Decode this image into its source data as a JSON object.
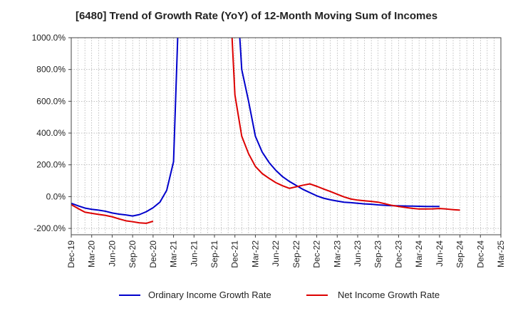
{
  "chart_data": {
    "type": "line",
    "title": "[6480]  Trend of Growth Rate (YoY) of 12-Month Moving Sum of Incomes",
    "xlabel": "",
    "ylabel": "",
    "ylim": [
      -240,
      1000
    ],
    "y_ticks": [
      -200,
      0,
      200,
      400,
      600,
      800,
      1000
    ],
    "y_tick_labels": [
      "-200.0%",
      "0.0%",
      "200.0%",
      "400.0%",
      "600.0%",
      "800.0%",
      "1000.0%"
    ],
    "x_tick_labels": [
      "Dec-19",
      "Mar-20",
      "Jun-20",
      "Sep-20",
      "Dec-20",
      "Mar-21",
      "Jun-21",
      "Sep-21",
      "Dec-21",
      "Mar-22",
      "Jun-22",
      "Sep-22",
      "Dec-22",
      "Mar-23",
      "Jun-23",
      "Sep-23",
      "Dec-23",
      "Mar-24",
      "Jun-24",
      "Sep-24",
      "Dec-24",
      "Mar-25"
    ],
    "grid": true,
    "legend_position": "bottom",
    "series": [
      {
        "name": "Ordinary Income Growth Rate",
        "color": "#0000cc",
        "values": [
          -42,
          -58,
          -72,
          -80,
          -85,
          -92,
          -103,
          -110,
          -115,
          -122,
          -113,
          -95,
          -70,
          -35,
          40,
          220,
          1500,
          null,
          null,
          null,
          null,
          null,
          null,
          null,
          1500,
          800,
          600,
          380,
          280,
          215,
          165,
          125,
          95,
          70,
          45,
          25,
          5,
          -10,
          -20,
          -28,
          -35,
          -38,
          -42,
          -46,
          -48,
          -52,
          -55,
          -57,
          -58,
          -59,
          -60,
          -61,
          -62,
          -62,
          -62
        ]
      },
      {
        "name": "Net Income Growth Rate",
        "color": "#dd0000",
        "values": [
          -50,
          -75,
          -98,
          -105,
          -112,
          -118,
          -127,
          -140,
          -152,
          -158,
          -165,
          -168,
          -155,
          null,
          null,
          null,
          null,
          null,
          null,
          null,
          null,
          null,
          null,
          1500,
          640,
          380,
          270,
          190,
          145,
          115,
          88,
          68,
          52,
          62,
          72,
          80,
          65,
          48,
          32,
          15,
          -2,
          -15,
          -22,
          -26,
          -30,
          -35,
          -45,
          -55,
          -62,
          -68,
          -74,
          -78,
          -78,
          -77,
          -75,
          -78,
          -82,
          -85
        ]
      }
    ]
  },
  "legend": {
    "items": [
      {
        "label": "Ordinary Income Growth Rate",
        "color": "#0000cc"
      },
      {
        "label": "Net Income Growth Rate",
        "color": "#dd0000"
      }
    ]
  }
}
